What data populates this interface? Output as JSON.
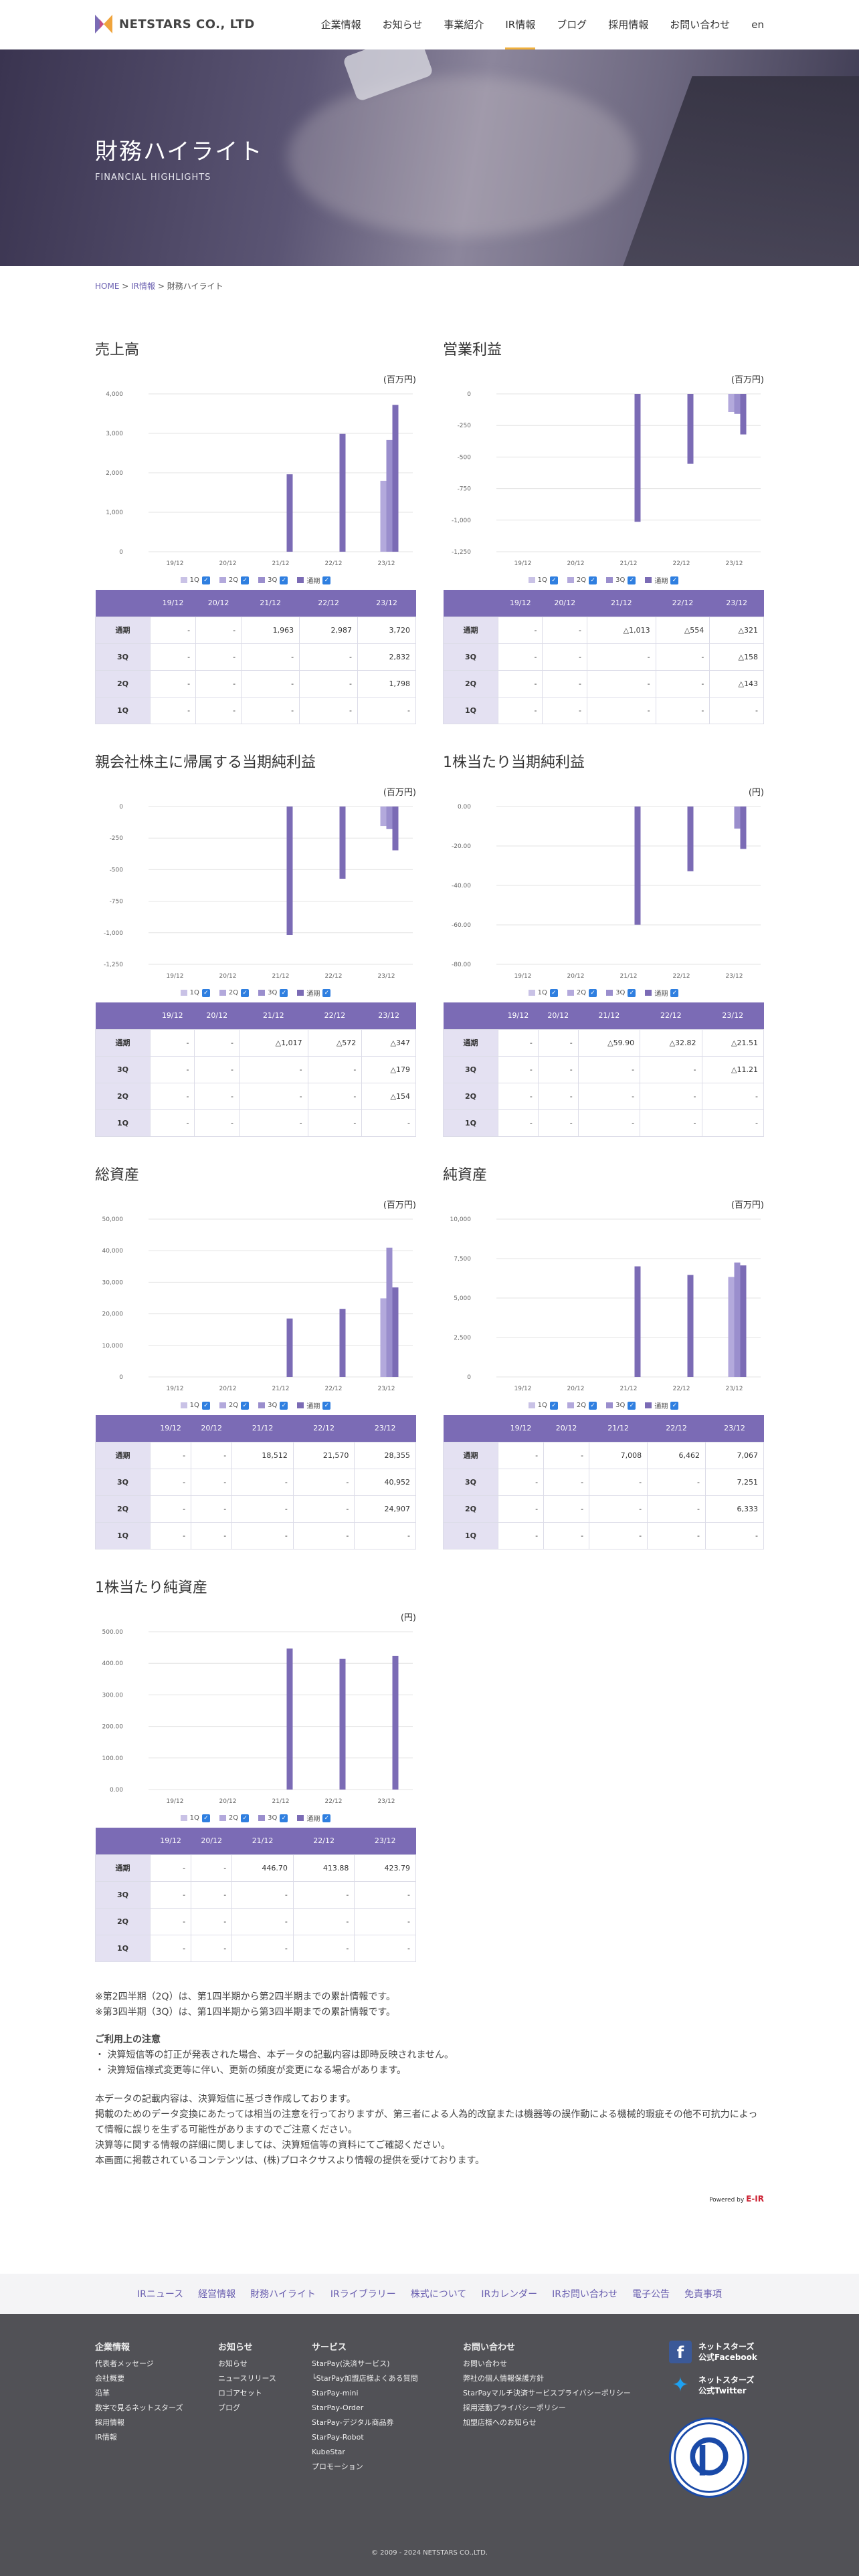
{
  "header": {
    "logo_text": "NETSTARS CO., LTD",
    "nav": [
      "企業情報",
      "お知らせ",
      "事業紹介",
      "IR情報",
      "ブログ",
      "採用情報",
      "お問い合わせ",
      "en"
    ],
    "active_index": 3
  },
  "hero": {
    "title": "財務ハイライト",
    "subtitle": "FINANCIAL HIGHLIGHTS"
  },
  "breadcrumb": {
    "home": "HOME",
    "sep": ">",
    "ir": "IR情報",
    "current": "財務ハイライト"
  },
  "legend": {
    "items": [
      "1Q",
      "2Q",
      "3Q",
      "通期"
    ],
    "colors": [
      "#c9c2e6",
      "#b3a9dc",
      "#9a8ecd",
      "#7b6bb5"
    ]
  },
  "table_header": [
    "",
    "19/12",
    "20/12",
    "21/12",
    "22/12",
    "23/12"
  ],
  "row_labels": [
    "通期",
    "3Q",
    "2Q",
    "1Q"
  ],
  "chart_data": [
    {
      "type": "bar",
      "title": "売上高",
      "unit": "(百万円)",
      "categories": [
        "19/12",
        "20/12",
        "21/12",
        "22/12",
        "23/12"
      ],
      "ylim": [
        0,
        4000
      ],
      "ticks": [
        "0",
        "1,000",
        "2,000",
        "3,000",
        "4,000"
      ],
      "series": [
        {
          "name": "1Q",
          "values": [
            null,
            null,
            null,
            null,
            null
          ]
        },
        {
          "name": "2Q",
          "values": [
            null,
            null,
            null,
            null,
            1798
          ]
        },
        {
          "name": "3Q",
          "values": [
            null,
            null,
            null,
            null,
            2832
          ]
        },
        {
          "name": "通期",
          "values": [
            null,
            null,
            1963,
            2987,
            3720
          ]
        }
      ],
      "table": [
        [
          "-",
          "-",
          "1,963",
          "2,987",
          "3,720"
        ],
        [
          "-",
          "-",
          "-",
          "-",
          "2,832"
        ],
        [
          "-",
          "-",
          "-",
          "-",
          "1,798"
        ],
        [
          "-",
          "-",
          "-",
          "-",
          "-"
        ]
      ]
    },
    {
      "type": "bar",
      "title": "営業利益",
      "unit": "(百万円)",
      "categories": [
        "19/12",
        "20/12",
        "21/12",
        "22/12",
        "23/12"
      ],
      "ylim": [
        -1250,
        0
      ],
      "ticks": [
        "-1,250",
        "-1,000",
        "-750",
        "-500",
        "-250",
        "0"
      ],
      "series": [
        {
          "name": "1Q",
          "values": [
            null,
            null,
            null,
            null,
            null
          ]
        },
        {
          "name": "2Q",
          "values": [
            null,
            null,
            null,
            null,
            -143
          ]
        },
        {
          "name": "3Q",
          "values": [
            null,
            null,
            null,
            null,
            -158
          ]
        },
        {
          "name": "通期",
          "values": [
            null,
            null,
            -1013,
            -554,
            -321
          ]
        }
      ],
      "table": [
        [
          "-",
          "-",
          "△1,013",
          "△554",
          "△321"
        ],
        [
          "-",
          "-",
          "-",
          "-",
          "△158"
        ],
        [
          "-",
          "-",
          "-",
          "-",
          "△143"
        ],
        [
          "-",
          "-",
          "-",
          "-",
          "-"
        ]
      ]
    },
    {
      "type": "bar",
      "title": "親会社株主に帰属する当期純利益",
      "unit": "(百万円)",
      "categories": [
        "19/12",
        "20/12",
        "21/12",
        "22/12",
        "23/12"
      ],
      "ylim": [
        -1250,
        0
      ],
      "ticks": [
        "-1,250",
        "-1,000",
        "-750",
        "-500",
        "-250",
        "0"
      ],
      "series": [
        {
          "name": "1Q",
          "values": [
            null,
            null,
            null,
            null,
            null
          ]
        },
        {
          "name": "2Q",
          "values": [
            null,
            null,
            null,
            null,
            -154
          ]
        },
        {
          "name": "3Q",
          "values": [
            null,
            null,
            null,
            null,
            -179
          ]
        },
        {
          "name": "通期",
          "values": [
            null,
            null,
            -1017,
            -572,
            -347
          ]
        }
      ],
      "table": [
        [
          "-",
          "-",
          "△1,017",
          "△572",
          "△347"
        ],
        [
          "-",
          "-",
          "-",
          "-",
          "△179"
        ],
        [
          "-",
          "-",
          "-",
          "-",
          "△154"
        ],
        [
          "-",
          "-",
          "-",
          "-",
          "-"
        ]
      ]
    },
    {
      "type": "bar",
      "title": "1株当たり当期純利益",
      "unit": "(円)",
      "categories": [
        "19/12",
        "20/12",
        "21/12",
        "22/12",
        "23/12"
      ],
      "ylim": [
        -80,
        0
      ],
      "ticks": [
        "-80.00",
        "-60.00",
        "-40.00",
        "-20.00",
        "0.00"
      ],
      "series": [
        {
          "name": "1Q",
          "values": [
            null,
            null,
            null,
            null,
            null
          ]
        },
        {
          "name": "2Q",
          "values": [
            null,
            null,
            null,
            null,
            null
          ]
        },
        {
          "name": "3Q",
          "values": [
            null,
            null,
            null,
            null,
            -11.21
          ]
        },
        {
          "name": "通期",
          "values": [
            null,
            null,
            -59.9,
            -32.82,
            -21.51
          ]
        }
      ],
      "table": [
        [
          "-",
          "-",
          "△59.90",
          "△32.82",
          "△21.51"
        ],
        [
          "-",
          "-",
          "-",
          "-",
          "△11.21"
        ],
        [
          "-",
          "-",
          "-",
          "-",
          "-"
        ],
        [
          "-",
          "-",
          "-",
          "-",
          "-"
        ]
      ]
    },
    {
      "type": "bar",
      "title": "総資産",
      "unit": "(百万円)",
      "categories": [
        "19/12",
        "20/12",
        "21/12",
        "22/12",
        "23/12"
      ],
      "ylim": [
        0,
        50000
      ],
      "ticks": [
        "0",
        "10,000",
        "20,000",
        "30,000",
        "40,000",
        "50,000"
      ],
      "series": [
        {
          "name": "1Q",
          "values": [
            null,
            null,
            null,
            null,
            null
          ]
        },
        {
          "name": "2Q",
          "values": [
            null,
            null,
            null,
            null,
            24907
          ]
        },
        {
          "name": "3Q",
          "values": [
            null,
            null,
            null,
            null,
            40952
          ]
        },
        {
          "name": "通期",
          "values": [
            null,
            null,
            18512,
            21570,
            28355
          ]
        }
      ],
      "table": [
        [
          "-",
          "-",
          "18,512",
          "21,570",
          "28,355"
        ],
        [
          "-",
          "-",
          "-",
          "-",
          "40,952"
        ],
        [
          "-",
          "-",
          "-",
          "-",
          "24,907"
        ],
        [
          "-",
          "-",
          "-",
          "-",
          "-"
        ]
      ]
    },
    {
      "type": "bar",
      "title": "純資産",
      "unit": "(百万円)",
      "categories": [
        "19/12",
        "20/12",
        "21/12",
        "22/12",
        "23/12"
      ],
      "ylim": [
        0,
        10000
      ],
      "ticks": [
        "0",
        "2,500",
        "5,000",
        "7,500",
        "10,000"
      ],
      "series": [
        {
          "name": "1Q",
          "values": [
            null,
            null,
            null,
            null,
            null
          ]
        },
        {
          "name": "2Q",
          "values": [
            null,
            null,
            null,
            null,
            6333
          ]
        },
        {
          "name": "3Q",
          "values": [
            null,
            null,
            null,
            null,
            7251
          ]
        },
        {
          "name": "通期",
          "values": [
            null,
            null,
            7008,
            6462,
            7067
          ]
        }
      ],
      "table": [
        [
          "-",
          "-",
          "7,008",
          "6,462",
          "7,067"
        ],
        [
          "-",
          "-",
          "-",
          "-",
          "7,251"
        ],
        [
          "-",
          "-",
          "-",
          "-",
          "6,333"
        ],
        [
          "-",
          "-",
          "-",
          "-",
          "-"
        ]
      ]
    },
    {
      "type": "bar",
      "title": "1株当たり純資産",
      "unit": "(円)",
      "categories": [
        "19/12",
        "20/12",
        "21/12",
        "22/12",
        "23/12"
      ],
      "ylim": [
        0,
        500
      ],
      "ticks": [
        "0.00",
        "100.00",
        "200.00",
        "300.00",
        "400.00",
        "500.00"
      ],
      "series": [
        {
          "name": "1Q",
          "values": [
            null,
            null,
            null,
            null,
            null
          ]
        },
        {
          "name": "2Q",
          "values": [
            null,
            null,
            null,
            null,
            null
          ]
        },
        {
          "name": "3Q",
          "values": [
            null,
            null,
            null,
            null,
            null
          ]
        },
        {
          "name": "通期",
          "values": [
            null,
            null,
            446.7,
            413.88,
            423.79
          ]
        }
      ],
      "table": [
        [
          "-",
          "-",
          "446.70",
          "413.88",
          "423.79"
        ],
        [
          "-",
          "-",
          "-",
          "-",
          "-"
        ],
        [
          "-",
          "-",
          "-",
          "-",
          "-"
        ],
        [
          "-",
          "-",
          "-",
          "-",
          "-"
        ]
      ]
    }
  ],
  "notes": {
    "n1": "※第2四半期（2Q）は、第1四半期から第2四半期までの累計情報です。",
    "n2": "※第3四半期（3Q）は、第1四半期から第3四半期までの累計情報です。",
    "heading": "ご利用上の注意",
    "b1": "・ 決算短信等の訂正が発表された場合、本データの記載内容は即時反映されません。",
    "b2": "・ 決算短信様式変更等に伴い、更新の頻度が変更になる場合があります。",
    "p1": "本データの記載内容は、決算短信に基づき作成しております。",
    "p2": "掲載のためのデータ変換にあたっては相当の注意を行っておりますが、第三者による人為的改竄または機器等の誤作動による機械的瑕疵その他不可抗力によって情報に誤りを生ずる可能性がありますのでご注意ください。",
    "p3": "決算等に関する情報の詳細に関しましては、決算短信等の資料にてご確認ください。",
    "p4": "本画面に掲載されているコンテンツは、(株)プロネクサスより情報の提供を受けております。",
    "powered_by": "Powered by",
    "powered_logo": "E-IR"
  },
  "sublinks": [
    "IRニュース",
    "経営情報",
    "財務ハイライト",
    "IRライブラリー",
    "株式について",
    "IRカレンダー",
    "IRお問い合わせ",
    "電子公告",
    "免責事項"
  ],
  "footer": {
    "col1": {
      "heading": "企業情報",
      "items": [
        "代表者メッセージ",
        "会社概要",
        "沿革",
        "数字で見るネットスターズ",
        "採用情報",
        "IR情報"
      ]
    },
    "col2": {
      "heading": "お知らせ",
      "items": [
        "お知らせ",
        "ニュースリリース",
        "ロゴアセット",
        "ブログ"
      ]
    },
    "col3": {
      "heading": "サービス",
      "items": [
        "StarPay(決済サービス)",
        "└StarPay加盟店様よくある質問",
        "StarPay-mini",
        "StarPay-Order",
        "StarPay-デジタル商品券",
        "StarPay-Robot",
        "KubeStar",
        "プロモーション"
      ]
    },
    "col4": {
      "heading": "お問い合わせ",
      "items": [
        "お問い合わせ",
        "弊社の個人情報保護方針",
        "StarPayマルチ決済サービスプライバシーポリシー",
        "採用活動プライバシーポリシー",
        "加盟店様へのお知らせ"
      ]
    },
    "facebook": {
      "line1": "ネットスターズ",
      "line2": "公式Facebook"
    },
    "twitter": {
      "line1": "ネットスターズ",
      "line2": "公式Twitter"
    },
    "copyright": "© 2009 - 2024 NETSTARS CO.,LTD."
  }
}
